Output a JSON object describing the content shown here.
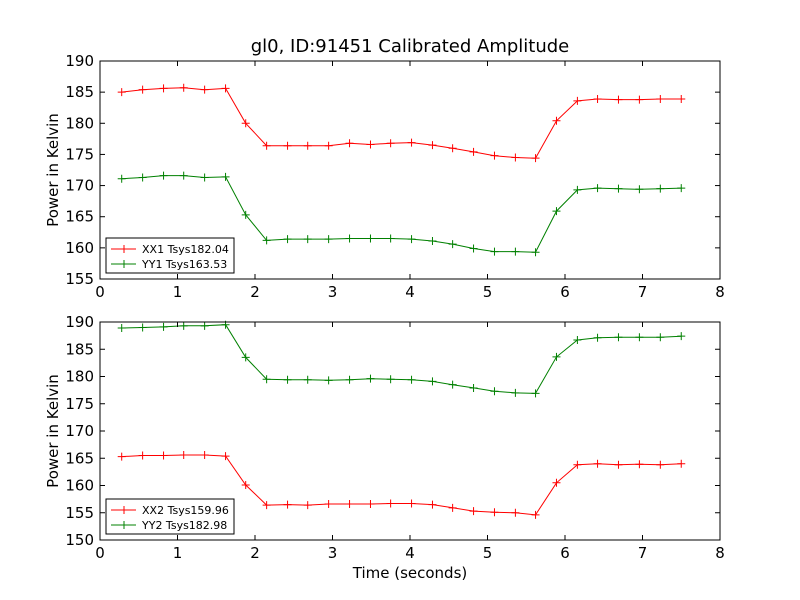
{
  "figure": {
    "title": "gl0, ID:91451 Calibrated Amplitude",
    "xlabel": "Time (seconds)"
  },
  "chart_data": [
    {
      "type": "line",
      "ylabel": "Power in Kelvin",
      "xlim": [
        0,
        8
      ],
      "ylim": [
        155,
        190
      ],
      "xticks": [
        0,
        1,
        2,
        3,
        4,
        5,
        6,
        7,
        8
      ],
      "yticks": [
        155,
        160,
        165,
        170,
        175,
        180,
        185,
        190
      ],
      "grid": false,
      "legend_position": "lower-left",
      "x": [
        0.28,
        0.55,
        0.82,
        1.08,
        1.35,
        1.62,
        1.88,
        2.15,
        2.42,
        2.68,
        2.95,
        3.22,
        3.49,
        3.75,
        4.02,
        4.29,
        4.55,
        4.82,
        5.09,
        5.36,
        5.62,
        5.89,
        6.16,
        6.42,
        6.69,
        6.96,
        7.23,
        7.5
      ],
      "series": [
        {
          "name": "XX1 Tsys182.04",
          "color": "#ff0000",
          "values": [
            185.0,
            185.4,
            185.6,
            185.7,
            185.4,
            185.6,
            180.0,
            176.4,
            176.4,
            176.4,
            176.4,
            176.8,
            176.6,
            176.8,
            176.9,
            176.5,
            176.0,
            175.4,
            174.8,
            174.5,
            174.4,
            180.4,
            183.6,
            183.9,
            183.8,
            183.8,
            183.9,
            183.9
          ]
        },
        {
          "name": "YY1 Tsys163.53",
          "color": "#008000",
          "values": [
            171.1,
            171.3,
            171.6,
            171.6,
            171.3,
            171.4,
            165.3,
            161.2,
            161.4,
            161.4,
            161.4,
            161.5,
            161.5,
            161.5,
            161.4,
            161.1,
            160.6,
            159.9,
            159.4,
            159.4,
            159.3,
            165.9,
            169.3,
            169.6,
            169.5,
            169.4,
            169.5,
            169.6
          ]
        }
      ]
    },
    {
      "type": "line",
      "ylabel": "Power in Kelvin",
      "xlabel": "Time (seconds)",
      "xlim": [
        0,
        8
      ],
      "ylim": [
        150,
        190
      ],
      "xticks": [
        0,
        1,
        2,
        3,
        4,
        5,
        6,
        7,
        8
      ],
      "yticks": [
        150,
        155,
        160,
        165,
        170,
        175,
        180,
        185,
        190
      ],
      "grid": false,
      "legend_position": "lower-left",
      "x": [
        0.28,
        0.55,
        0.82,
        1.08,
        1.35,
        1.62,
        1.88,
        2.15,
        2.42,
        2.68,
        2.95,
        3.22,
        3.49,
        3.75,
        4.02,
        4.29,
        4.55,
        4.82,
        5.09,
        5.36,
        5.62,
        5.89,
        6.16,
        6.42,
        6.69,
        6.96,
        7.23,
        7.5
      ],
      "series": [
        {
          "name": "XX2 Tsys159.96",
          "color": "#ff0000",
          "values": [
            165.3,
            165.5,
            165.5,
            165.6,
            165.6,
            165.4,
            160.1,
            156.4,
            156.5,
            156.4,
            156.6,
            156.6,
            156.6,
            156.7,
            156.7,
            156.5,
            155.9,
            155.3,
            155.1,
            155.0,
            154.6,
            160.5,
            163.8,
            164.0,
            163.8,
            163.9,
            163.8,
            164.0
          ]
        },
        {
          "name": "YY2 Tsys182.98",
          "color": "#008000",
          "values": [
            188.9,
            189.0,
            189.1,
            189.3,
            189.3,
            189.5,
            183.5,
            179.5,
            179.4,
            179.4,
            179.3,
            179.4,
            179.6,
            179.5,
            179.4,
            179.1,
            178.5,
            177.9,
            177.3,
            177.0,
            176.9,
            183.6,
            186.7,
            187.1,
            187.2,
            187.2,
            187.2,
            187.4
          ]
        }
      ]
    }
  ]
}
